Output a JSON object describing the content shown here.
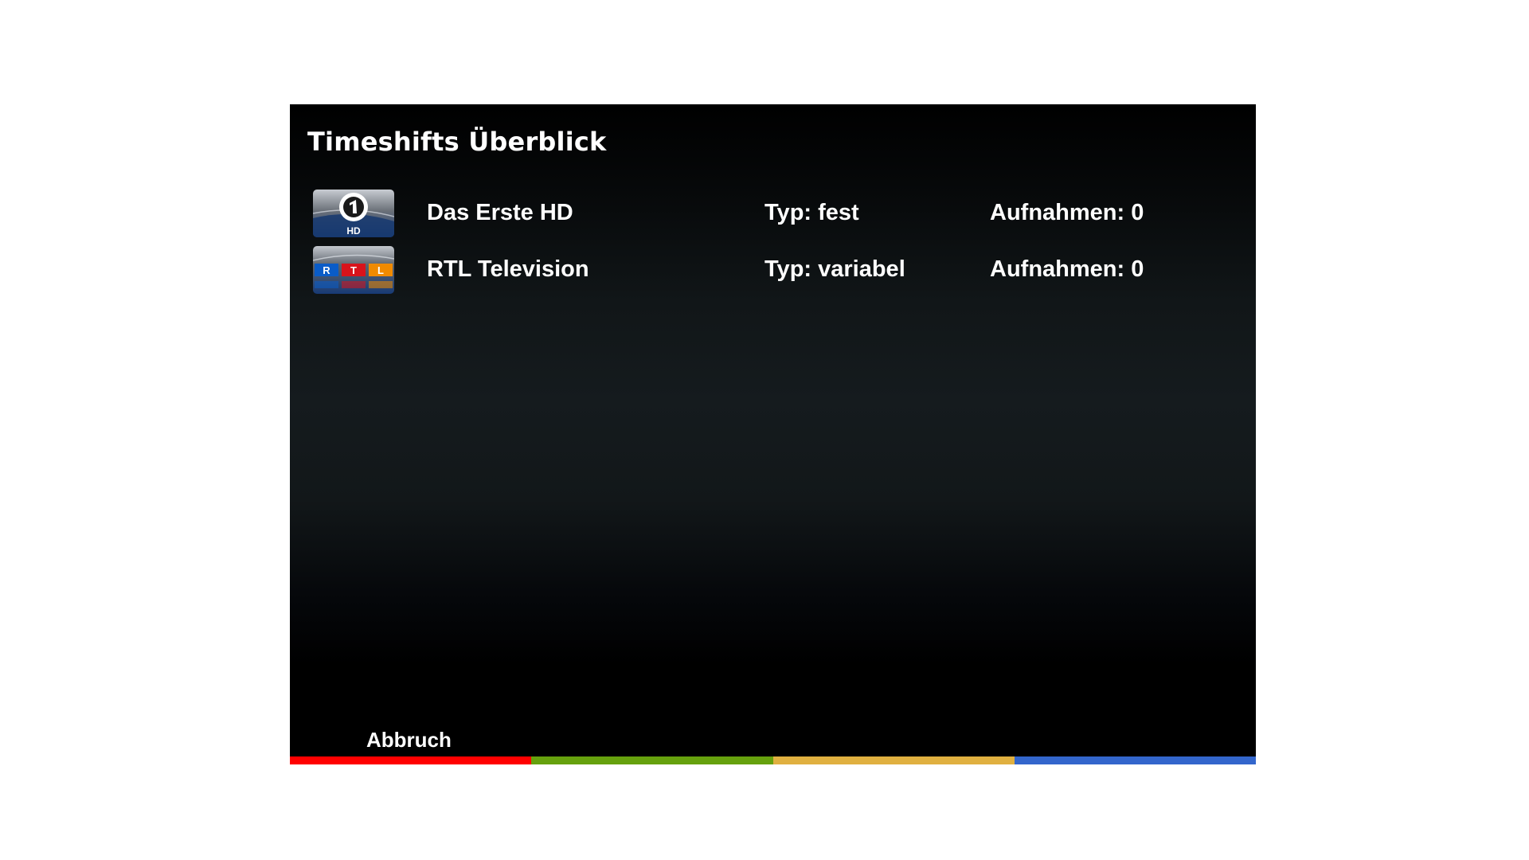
{
  "dialog": {
    "title": "Timeshifts Überblick",
    "channels": [
      {
        "name": "Das Erste HD",
        "type": "Typ: fest",
        "recordings": "Aufnahmen: 0",
        "logo_icon": "das-erste-hd-logo",
        "logo_text": "HD"
      },
      {
        "name": "RTL Television",
        "type": "Typ: variabel",
        "recordings": "Aufnahmen: 0",
        "logo_icon": "rtl-logo",
        "logo_letters": [
          "R",
          "T",
          "L"
        ]
      }
    ]
  },
  "footer": {
    "red_label": "Abbruch",
    "colors": {
      "red": "#ff0000",
      "green": "#66a10d",
      "yellow": "#e0b040",
      "blue": "#3366cc"
    }
  }
}
